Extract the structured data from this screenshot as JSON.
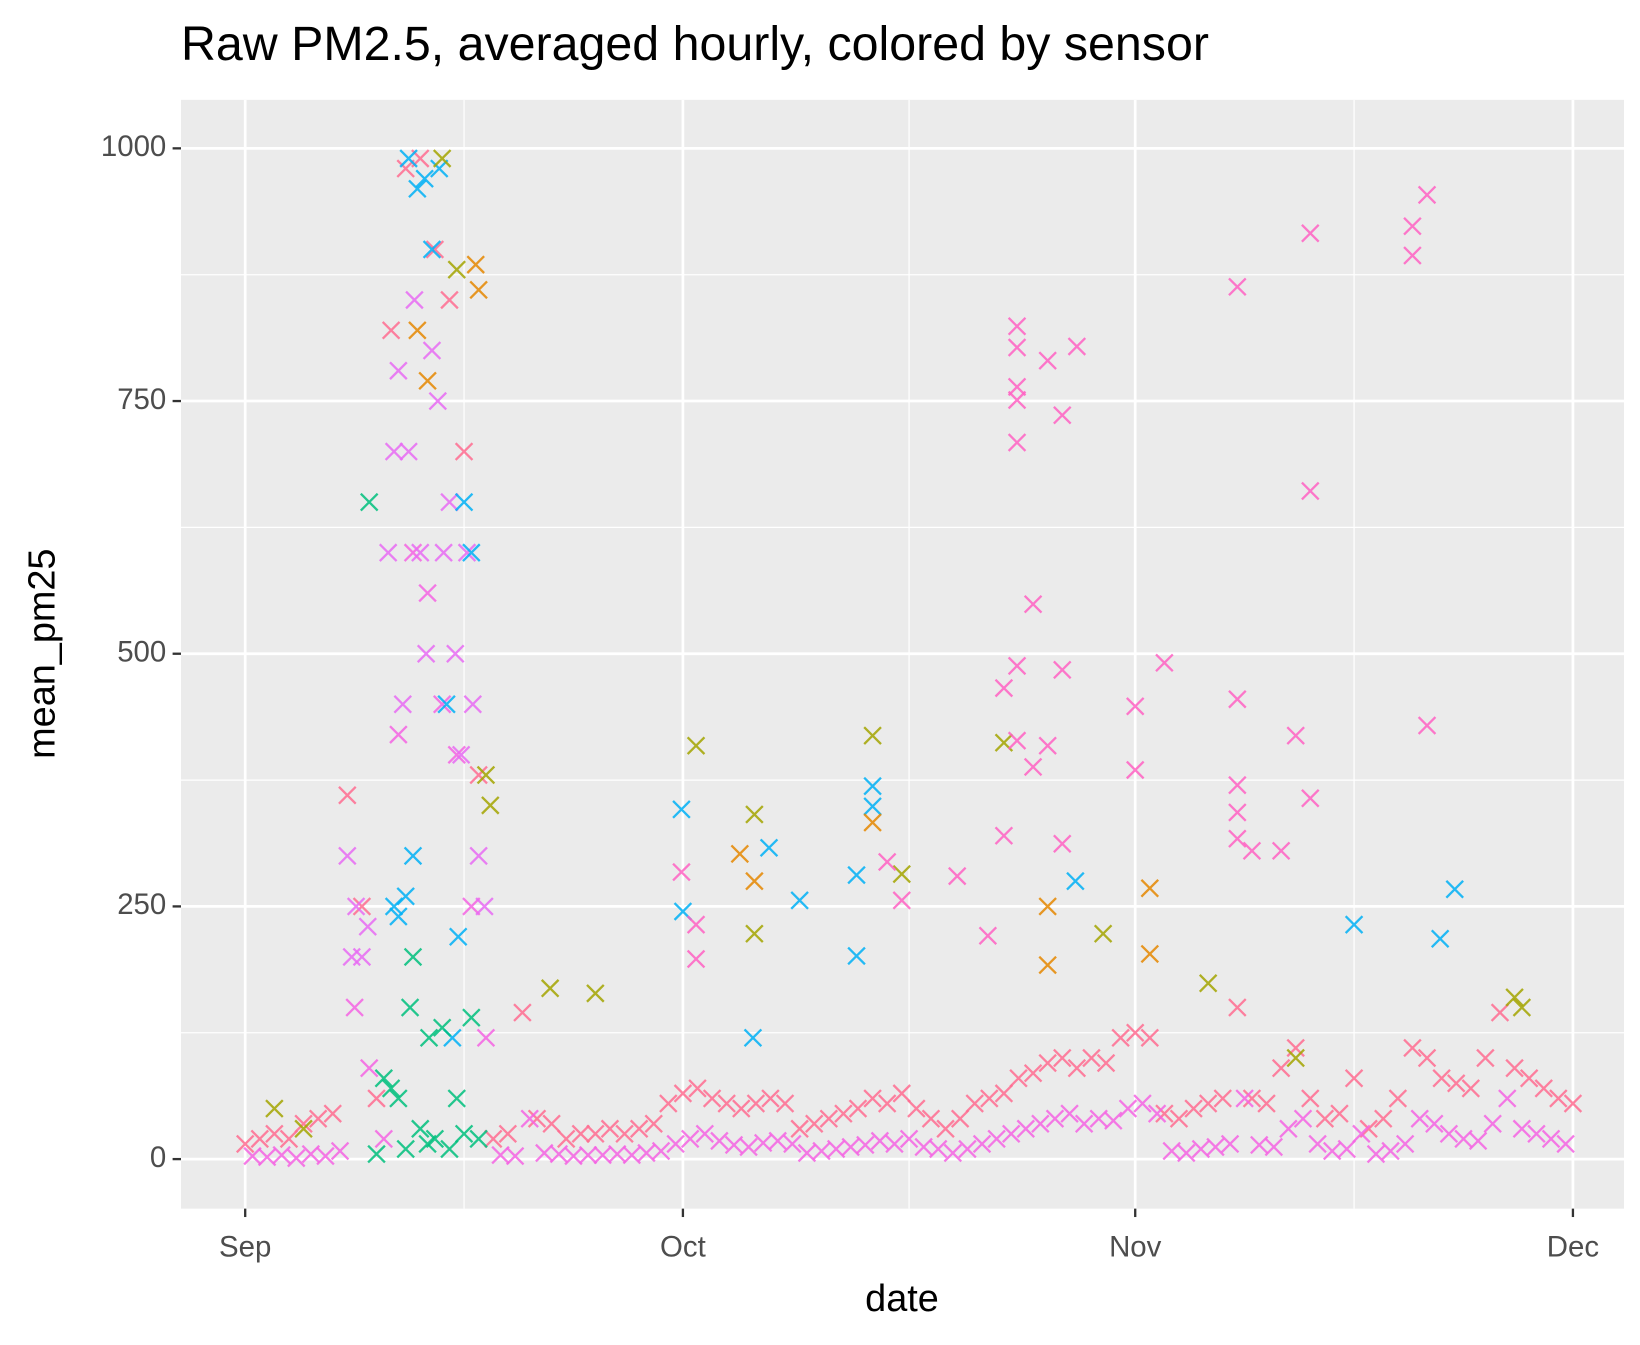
{
  "chart_data": {
    "type": "scatter",
    "title": "Raw PM2.5, averaged hourly, colored by sensor",
    "x_label": "date",
    "y_label": "mean_pm25",
    "xlim": [
      -4.4,
      94.5
    ],
    "ylim": [
      -49,
      1048
    ],
    "xticks": [
      {
        "value": 0,
        "label": "Sep"
      },
      {
        "value": 30,
        "label": "Oct"
      },
      {
        "value": 61,
        "label": "Nov"
      },
      {
        "value": 91,
        "label": "Dec"
      }
    ],
    "yticks": [
      0,
      250,
      500,
      750,
      1000
    ],
    "xminor": [
      15,
      45.5,
      76
    ],
    "yminor": [
      125,
      375,
      625,
      875
    ],
    "grid": true,
    "series": [
      {
        "color": "#FF6C91",
        "x": [
          0,
          1,
          2,
          3,
          4,
          5,
          6,
          7,
          8,
          9,
          10,
          11,
          12,
          13,
          14,
          15,
          16,
          17,
          18,
          19,
          20,
          21,
          22,
          23,
          24,
          25,
          26,
          27,
          28,
          29,
          30,
          31,
          32,
          33,
          34,
          35,
          36,
          37,
          38,
          39,
          40,
          41,
          42,
          43,
          44,
          45,
          46,
          47,
          48,
          49,
          50,
          51,
          52,
          53,
          54,
          55,
          56,
          57,
          58,
          59,
          60,
          61,
          62,
          63,
          64,
          65,
          66,
          67,
          68,
          69,
          70,
          71,
          72,
          73,
          74,
          75,
          76,
          77,
          78,
          79,
          80,
          81,
          82,
          83,
          84,
          85,
          86,
          87,
          88,
          89,
          90,
          91
        ],
        "values": [
          15,
          20,
          25,
          20,
          35,
          40,
          45,
          360,
          250,
          60,
          820,
          980,
          990,
          900,
          850,
          700,
          380,
          20,
          25,
          145,
          40,
          35,
          20,
          25,
          25,
          30,
          25,
          30,
          35,
          55,
          65,
          70,
          60,
          55,
          50,
          55,
          60,
          55,
          30,
          35,
          40,
          45,
          50,
          60,
          55,
          65,
          50,
          40,
          30,
          40,
          55,
          60,
          65,
          80,
          85,
          95,
          100,
          90,
          100,
          95,
          120,
          125,
          120,
          45,
          40,
          50,
          55,
          60,
          150,
          60,
          55,
          90,
          110,
          60,
          40,
          45,
          80,
          30,
          40,
          60,
          110,
          100,
          80,
          75,
          70,
          100,
          145,
          90,
          80,
          70,
          60,
          55
        ]
      },
      {
        "color": "#F564E3",
        "x": [
          0.5,
          1.5,
          2.5,
          3.5,
          4.5,
          5.5,
          6.5,
          7.5,
          8.5,
          9.5,
          10.5,
          11.5,
          12.5,
          13.5,
          14.5,
          15.5,
          16.5,
          17.5,
          18.5,
          19.5,
          20.5,
          21.5,
          22.5,
          23.5,
          24.5,
          25.5,
          26.5,
          27.5,
          28.5,
          29.5,
          30.5,
          31.5,
          32.5,
          33.5,
          34.5,
          35.5,
          36.5,
          37.5,
          38.5,
          39.5,
          40.5,
          41.5,
          42.5,
          43.5,
          44.5,
          45.5,
          46.5,
          47.5,
          48.5,
          49.5,
          50.5,
          51.5,
          52.5,
          53.5,
          54.5,
          55.5,
          56.5,
          57.5,
          58.5,
          59.5,
          60.5,
          61.5,
          62.5,
          63.5,
          64.5,
          65.5,
          66.5,
          67.5,
          68.5,
          69.5,
          70.5,
          71.5,
          72.5,
          73.5,
          74.5,
          75.5,
          76.5,
          77.5,
          78.5,
          79.5,
          80.5,
          81.5,
          82.5,
          83.5,
          84.5,
          85.5,
          86.5,
          87.5,
          88.5,
          89.5,
          90.5
        ],
        "values": [
          3,
          2,
          4,
          1,
          5,
          3,
          8,
          150,
          90,
          20,
          420,
          600,
          560,
          450,
          400,
          250,
          120,
          4,
          3,
          40,
          6,
          5,
          3,
          4,
          4,
          5,
          4,
          6,
          8,
          15,
          20,
          25,
          18,
          14,
          12,
          16,
          18,
          15,
          6,
          8,
          10,
          12,
          14,
          18,
          15,
          20,
          12,
          10,
          6,
          10,
          15,
          20,
          25,
          30,
          35,
          40,
          45,
          35,
          40,
          38,
          50,
          55,
          45,
          8,
          6,
          10,
          12,
          15,
          60,
          14,
          12,
          30,
          40,
          15,
          8,
          10,
          25,
          5,
          8,
          15,
          40,
          35,
          25,
          20,
          18,
          35,
          60,
          30,
          25,
          20,
          15
        ]
      },
      {
        "color": "#E76BF3",
        "x": [
          7,
          7.3,
          7.6,
          8,
          8.4,
          9.8,
          10.2,
          10.5,
          10.8,
          11.2,
          11.6,
          12,
          12.4,
          12.8,
          13.2,
          13.6,
          14,
          14.4,
          14.8,
          15.2,
          15.6,
          16,
          16.4
        ],
        "values": [
          300,
          200,
          250,
          200,
          230,
          600,
          700,
          780,
          450,
          700,
          850,
          600,
          500,
          800,
          750,
          600,
          650,
          500,
          400,
          600,
          450,
          300,
          250
        ]
      },
      {
        "color": "#00B0F6",
        "x": [
          10.2,
          10.5,
          11,
          11.2,
          11.5,
          11.8,
          12.3,
          12.8,
          13.3,
          13.8,
          14.2,
          14.6,
          15,
          15.5,
          29.9,
          30,
          34.8,
          35.9,
          38,
          41.9,
          41.9,
          43,
          43,
          76,
          81.9,
          82.9,
          56.9
        ],
        "values": [
          250,
          240,
          260,
          990,
          300,
          960,
          970,
          900,
          980,
          450,
          120,
          220,
          650,
          600,
          346,
          245,
          120,
          308,
          256,
          281,
          201,
          369,
          349,
          232,
          218,
          267,
          275
        ]
      },
      {
        "color": "#00BF7D",
        "x": [
          9,
          9.5,
          10,
          10.5,
          11,
          11.5,
          12,
          12.5,
          13,
          13.5,
          14,
          14.5,
          15,
          15.5,
          16,
          8.5,
          11.3,
          12.6
        ],
        "values": [
          5,
          80,
          70,
          60,
          10,
          200,
          30,
          15,
          20,
          130,
          10,
          60,
          25,
          140,
          20,
          650,
          150,
          120
        ]
      },
      {
        "color": "#A3A500",
        "x": [
          30.9,
          43,
          34.9,
          45,
          52,
          58.8,
          66,
          24,
          20.9,
          34.9,
          13.5,
          14.5,
          16.5,
          16.8,
          2,
          4,
          72,
          87,
          87.5
        ],
        "values": [
          409,
          419,
          341,
          282,
          412,
          223,
          174,
          164,
          169,
          223,
          990,
          880,
          380,
          350,
          50,
          30,
          100,
          160,
          150
        ]
      },
      {
        "color": "#E58700",
        "x": [
          33.9,
          34.9,
          43,
          55,
          55,
          62,
          62,
          15.8,
          16,
          11.8,
          12.5
        ],
        "values": [
          302,
          275,
          333,
          250,
          192,
          268,
          203,
          885,
          860,
          820,
          770
        ]
      },
      {
        "color": "#FF61C3",
        "x": [
          52.9,
          52.9,
          52.9,
          52.9,
          52.9,
          55,
          56,
          57,
          54,
          52.9,
          52,
          52.9,
          54,
          55,
          56,
          52,
          56,
          61,
          61,
          63,
          68,
          73,
          73,
          72,
          73,
          68,
          68,
          80,
          80,
          81,
          81,
          71,
          68,
          68,
          69,
          29.9,
          30.9,
          30.9,
          44,
          45,
          48.8,
          50.9
        ],
        "values": [
          824,
          803,
          764,
          751,
          709,
          790,
          736,
          804,
          549,
          488,
          466,
          414,
          388,
          409,
          484,
          320,
          312,
          448,
          385,
          491,
          863,
          916,
          661,
          419,
          357,
          455,
          370,
          923,
          894,
          954,
          429,
          305,
          343,
          317,
          305,
          284,
          232,
          198,
          294,
          256,
          280,
          221
        ]
      }
    ]
  }
}
